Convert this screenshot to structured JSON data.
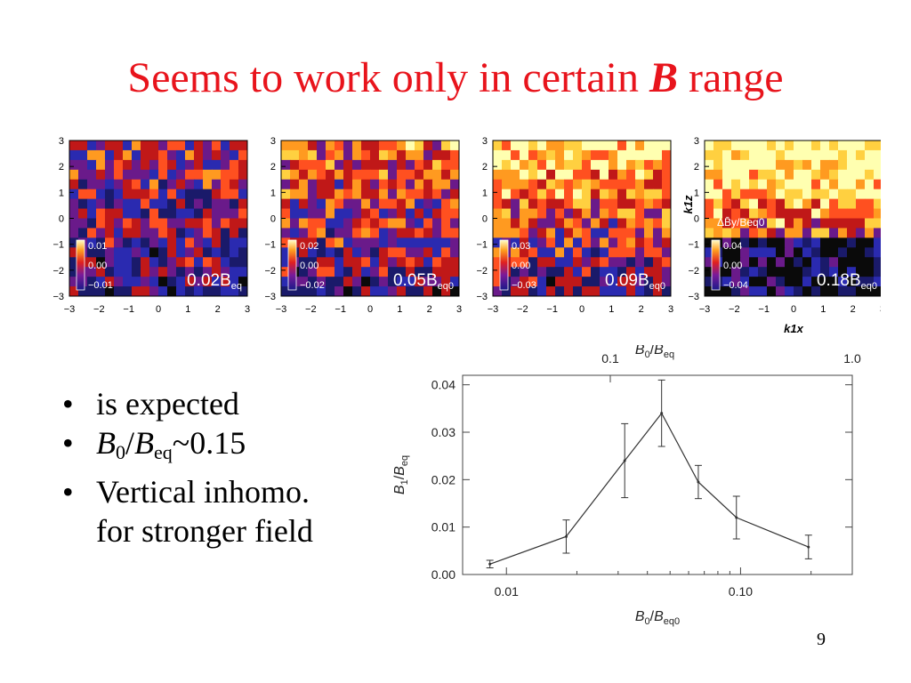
{
  "slide": {
    "title_prefix": "Seems to work only in certain",
    "title_symbol": "B",
    "title_suffix": "range",
    "page_number": "9"
  },
  "bullets": [
    {
      "text": "is expected"
    },
    {
      "b": "B",
      "sub0": "0",
      "slash": "/",
      "b2": "B",
      "sub2": "eq",
      "rest": "~0.15"
    },
    {
      "line1": "Vertical inhomo.",
      "line2": "for stronger field"
    }
  ],
  "panels": [
    {
      "label": "0.02B",
      "label_sub": "eq",
      "cbar": [
        "0.01",
        "0.00",
        "−0.01"
      ]
    },
    {
      "label": "0.05B",
      "label_sub": "eq0",
      "cbar": [
        "0.02",
        "0.00",
        "−0.02"
      ]
    },
    {
      "label": "0.09B",
      "label_sub": "eq0",
      "cbar": [
        "0.03",
        "0.00",
        "−0.03"
      ]
    },
    {
      "label": "0.18B",
      "label_sub": "eq0",
      "cbar": [
        "0.04",
        "0.00",
        "−0.04"
      ],
      "cbar_title": "ΔB̄y/Beq0"
    }
  ],
  "panel_ticks": [
    "3",
    "2",
    "1",
    "0",
    "−1",
    "−2",
    "−3"
  ],
  "panel_xticks": [
    "−3",
    "−2",
    "−1",
    "0",
    "1",
    "2",
    "3"
  ],
  "panel_axis": {
    "xlabel": "k1x",
    "ylabel": "k1z"
  },
  "colors": {
    "title": "#e8141c",
    "line": "#333333"
  },
  "chart_data": {
    "type": "line",
    "x": [
      0.0085,
      0.018,
      0.032,
      0.046,
      0.066,
      0.096,
      0.195
    ],
    "y": [
      0.0022,
      0.008,
      0.024,
      0.034,
      0.0195,
      0.012,
      0.0058
    ],
    "yerr": [
      0.0008,
      0.0035,
      0.0078,
      0.007,
      0.0035,
      0.0045,
      0.0025
    ],
    "xscale": "log",
    "xlim": [
      0.0065,
      0.3
    ],
    "ylim": [
      0.0,
      0.042
    ],
    "xticks": [
      "0.01",
      "0.10"
    ],
    "yticks": [
      "0.00",
      "0.01",
      "0.02",
      "0.03",
      "0.04"
    ],
    "top_axis_ticks": [
      "0.1",
      "1.0"
    ],
    "xlabel": "B0/Beq0",
    "ylabel": "B1/Beq",
    "top_label": "B0/Beq"
  }
}
